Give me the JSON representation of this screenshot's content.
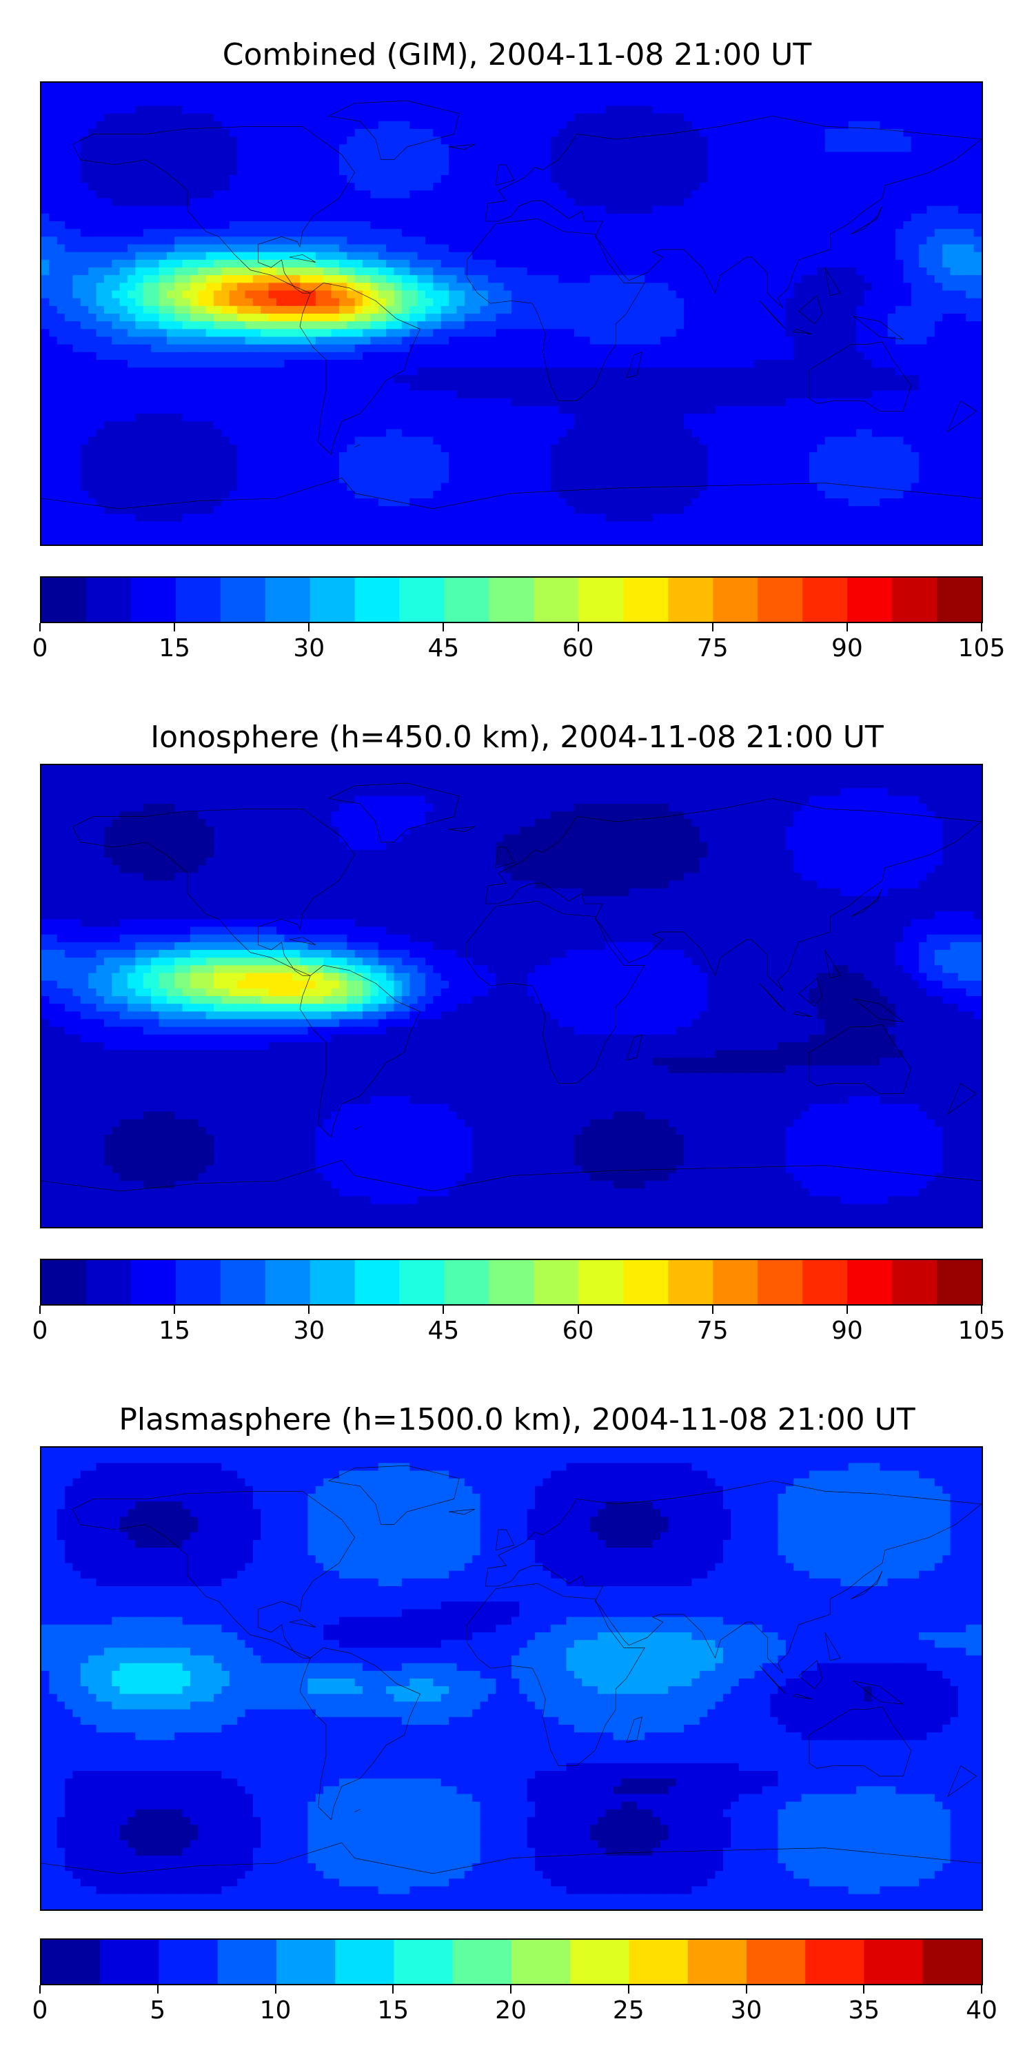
{
  "chart_data": [
    {
      "type": "heatmap",
      "title": "Combined (GIM), 2004-11-08 21:00 UT",
      "colorbar": {
        "min": 0,
        "max": 105,
        "step": 5,
        "ticks": [
          "0",
          "15",
          "30",
          "45",
          "60",
          "75",
          "90",
          "105"
        ]
      },
      "colormap": "jet",
      "coastlines": true,
      "background_level": 12,
      "blobs": [
        {
          "lon": -95,
          "lat": 8,
          "rlon": 55,
          "rlat": 16,
          "value": 58
        },
        {
          "lon": -80,
          "lat": 5,
          "rlon": 35,
          "rlat": 10,
          "value": 12
        },
        {
          "lon": -60,
          "lat": 2,
          "rlon": 30,
          "rlat": 12,
          "value": 20
        },
        {
          "lon": -20,
          "lat": 5,
          "rlon": 25,
          "rlat": 10,
          "value": 10
        },
        {
          "lon": 170,
          "lat": 22,
          "rlon": 20,
          "rlat": 14,
          "value": 14
        },
        {
          "lon": 150,
          "lat": -5,
          "rlon": 15,
          "rlat": 12,
          "value": 8
        },
        {
          "lon": 60,
          "lat": -28,
          "rlon": 90,
          "rlat": 8,
          "value": -6
        },
        {
          "lon": 130,
          "lat": 52,
          "rlon": 30,
          "rlat": 8,
          "value": -5
        }
      ]
    },
    {
      "type": "heatmap",
      "title": "Ionosphere  (h=450.0 km), 2004-11-08 21:00 UT",
      "colorbar": {
        "min": 0,
        "max": 105,
        "step": 5,
        "ticks": [
          "0",
          "15",
          "30",
          "45",
          "60",
          "75",
          "90",
          "105"
        ]
      },
      "colormap": "jet",
      "coastlines": true,
      "background_level": 8,
      "blobs": [
        {
          "lon": -100,
          "lat": 6,
          "rlon": 55,
          "rlat": 14,
          "value": 50
        },
        {
          "lon": -80,
          "lat": 3,
          "rlon": 30,
          "rlat": 10,
          "value": 12
        },
        {
          "lon": -60,
          "lat": 0,
          "rlon": 25,
          "rlat": 10,
          "value": 14
        },
        {
          "lon": 170,
          "lat": 15,
          "rlon": 20,
          "rlat": 12,
          "value": 14
        },
        {
          "lon": 0,
          "lat": 55,
          "rlon": 60,
          "rlat": 15,
          "value": -4
        },
        {
          "lon": 70,
          "lat": -25,
          "rlon": 90,
          "rlat": 8,
          "value": -4
        }
      ]
    },
    {
      "type": "heatmap",
      "title": "Plasmasphere (h=1500.0 km), 2004-11-08 21:00 UT",
      "colorbar": {
        "min": 0,
        "max": 40,
        "step": 2.5,
        "ticks": [
          "0",
          "5",
          "10",
          "15",
          "20",
          "25",
          "30",
          "35",
          "40"
        ]
      },
      "colormap": "jet",
      "coastlines": true,
      "background_level": 6,
      "blobs": [
        {
          "lon": -35,
          "lat": -5,
          "rlon": 25,
          "rlat": 14,
          "value": 8
        },
        {
          "lon": -70,
          "lat": -3,
          "rlon": 20,
          "rlat": 12,
          "value": 6
        },
        {
          "lon": -140,
          "lat": 0,
          "rlon": 30,
          "rlat": 10,
          "value": 4
        },
        {
          "lon": 75,
          "lat": 10,
          "rlon": 70,
          "rlat": 12,
          "value": 3
        },
        {
          "lon": 150,
          "lat": 15,
          "rlon": 40,
          "rlat": 10,
          "value": 3
        },
        {
          "lon": -10,
          "lat": 25,
          "rlon": 20,
          "rlat": 8,
          "value": -2
        },
        {
          "lon": 90,
          "lat": -40,
          "rlon": 80,
          "rlat": 6,
          "value": -2
        }
      ]
    }
  ]
}
